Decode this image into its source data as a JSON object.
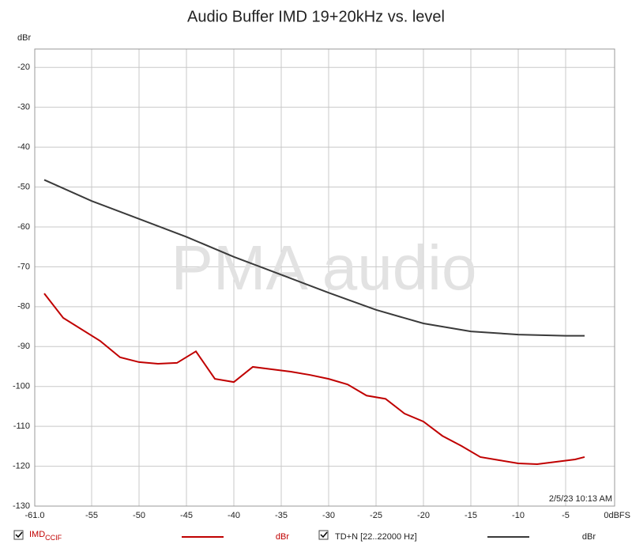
{
  "chart_data": {
    "type": "line",
    "title": "Audio Buffer IMD 19+20kHz vs. level",
    "y_label": "dBr",
    "watermark": "PMA audio",
    "timestamp": "2/5/23 10:13 AM",
    "xlim": [
      -61,
      0
    ],
    "ylim": [
      -130,
      -15.4
    ],
    "xticks": [
      {
        "value": -61,
        "label": "-61.0"
      },
      -55,
      -50,
      -45,
      -40,
      -35,
      -30,
      -25,
      -20,
      -15,
      -10,
      -5,
      {
        "value": 0,
        "label": "0dBFS"
      }
    ],
    "yticks": [
      -20,
      -30,
      -40,
      -50,
      -60,
      -70,
      -80,
      -90,
      -100,
      -110,
      -120,
      -130
    ],
    "grid": true,
    "series": [
      {
        "name": "IMD",
        "name_subscript": "CCIF",
        "unit": "dBr",
        "color": "#c00000",
        "x": [
          -60,
          -58,
          -54.1,
          -52,
          -50,
          -48,
          -46,
          -44,
          -42,
          -40,
          -38,
          -36,
          -34,
          -32,
          -30,
          -28,
          -26,
          -24,
          -22,
          -20,
          -18,
          -16,
          -14,
          -12,
          -10,
          -8,
          -6,
          -4,
          -3
        ],
        "values": [
          -76.7,
          -82.8,
          -88.6,
          -92.7,
          -93.9,
          -94.3,
          -94.1,
          -91.2,
          -98.1,
          -98.9,
          -95.1,
          -95.7,
          -96.3,
          -97.1,
          -98.1,
          -99.5,
          -102.3,
          -103.1,
          -106.8,
          -108.8,
          -112.4,
          -114.9,
          -117.7,
          -118.5,
          -119.3,
          -119.5,
          -118.9,
          -118.3,
          -117.7
        ]
      },
      {
        "name": "TD+N [22..22000 Hz]",
        "unit": "dBr",
        "color": "#3a3a3a",
        "x": [
          -60,
          -55,
          -50,
          -45,
          -40,
          -35,
          -30,
          -25,
          -20,
          -15,
          -10,
          -5,
          -3
        ],
        "values": [
          -48.2,
          -53.5,
          -58,
          -62.5,
          -67.5,
          -72,
          -76.5,
          -80.8,
          -84.2,
          -86.2,
          -87,
          -87.3,
          -87.3
        ]
      }
    ]
  }
}
